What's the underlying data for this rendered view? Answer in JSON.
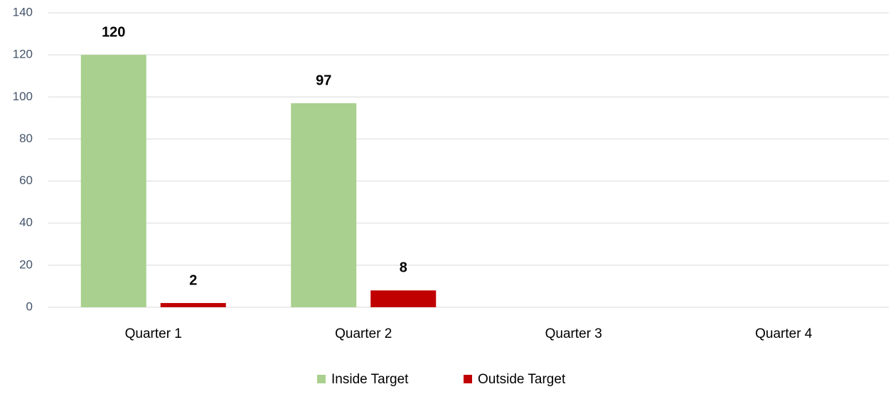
{
  "chart_data": {
    "type": "bar",
    "categories": [
      "Quarter 1",
      "Quarter 2",
      "Quarter 3",
      "Quarter 4"
    ],
    "series": [
      {
        "name": "Inside Target",
        "color": "#a9d08e",
        "values": [
          120,
          97,
          null,
          null
        ]
      },
      {
        "name": "Outside Target",
        "color": "#c00000",
        "values": [
          2,
          8,
          null,
          null
        ]
      }
    ],
    "ylim": [
      0,
      140
    ],
    "yticks": [
      0,
      20,
      40,
      60,
      80,
      100,
      120,
      140
    ],
    "grid": true,
    "legend": "bottom"
  }
}
